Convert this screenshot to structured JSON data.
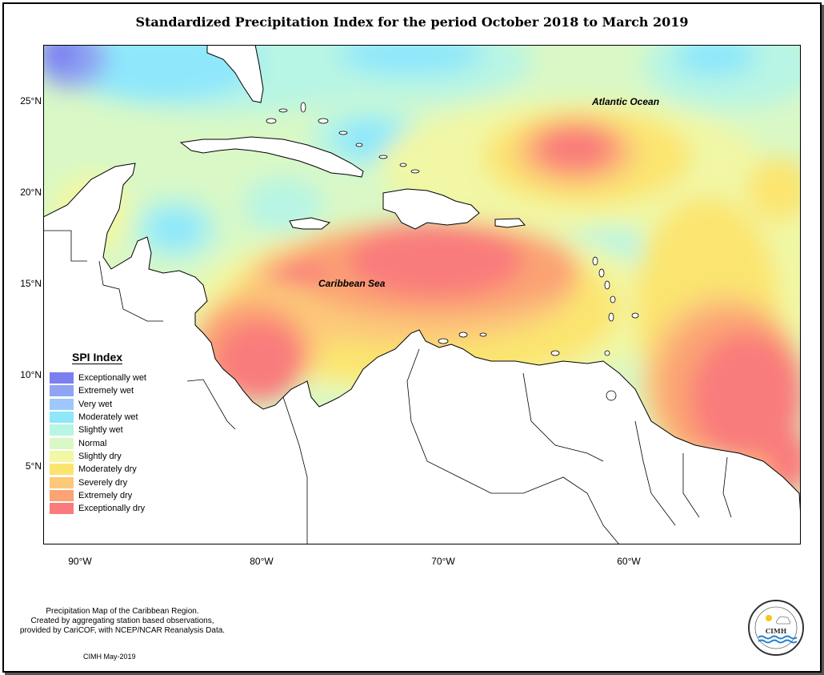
{
  "title": "Standardized Precipitation Index for the period October 2018 to March 2019",
  "labels": {
    "atlantic": "Atlantic Ocean",
    "caribbean": "Caribbean Sea"
  },
  "axes": {
    "y_ticks": [
      "25°N",
      "20°N",
      "15°N",
      "10°N",
      "5°N"
    ],
    "x_ticks": [
      "90°W",
      "80°W",
      "70°W",
      "60°W"
    ]
  },
  "legend": {
    "title": "SPI Index",
    "items": [
      {
        "label": "Exceptionally wet",
        "color": "#7b7ff0"
      },
      {
        "label": "Extremely wet",
        "color": "#8fa4f3"
      },
      {
        "label": "Very wet",
        "color": "#9ec8fb"
      },
      {
        "label": "Moderately wet",
        "color": "#8ee7fb"
      },
      {
        "label": "Slightly wet",
        "color": "#b7f5e4"
      },
      {
        "label": "Normal",
        "color": "#d9f8c6"
      },
      {
        "label": "Slightly dry",
        "color": "#f1f7a4"
      },
      {
        "label": "Moderately dry",
        "color": "#fbe56f"
      },
      {
        "label": "Severely dry",
        "color": "#fcc87a"
      },
      {
        "label": "Extremely dry",
        "color": "#fba373"
      },
      {
        "label": "Exceptionally dry",
        "color": "#f97b7b"
      }
    ]
  },
  "footnote": [
    "Precipitation Map of the Caribbean Region.",
    "Created by aggregating station based observations,",
    "provided by CariCOF, with NCEP/NCAR Reanalysis Data."
  ],
  "credit": "CIMH May-2019",
  "seal_text": "CIMH"
}
